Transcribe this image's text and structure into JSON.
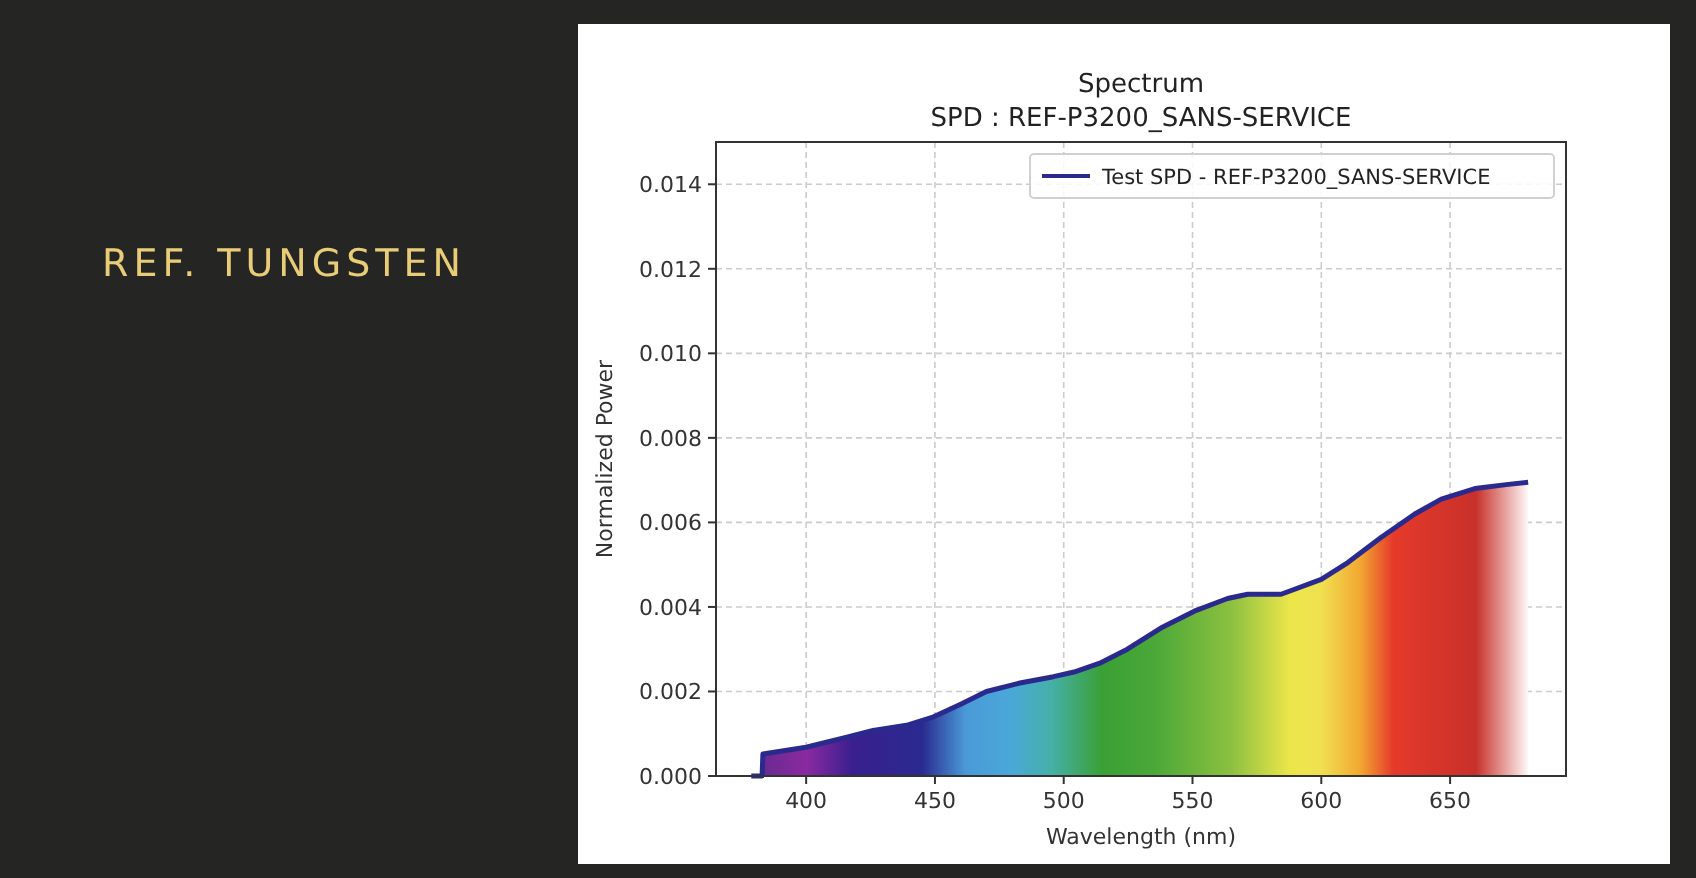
{
  "chart_data": {
    "type": "area",
    "title": "Spectrum",
    "subtitle": "SPD : REF-P3200_SANS-SERVICE",
    "xlabel": "Wavelength (nm)",
    "ylabel": "Normalized Power",
    "annotations": [
      "REF. TUNGSTEN"
    ],
    "x": [
      378.7,
      382.9,
      383.2,
      400,
      415.8,
      426,
      439,
      449.5,
      460,
      470,
      483,
      496,
      504,
      514,
      524.7,
      537.7,
      550.7,
      563.6,
      571.4,
      584.4,
      600,
      610.3,
      623.3,
      636.3,
      646.6,
      659.6,
      672.6,
      680.3
    ],
    "series": [
      {
        "name": "Test SPD - REF-P3200_SANS-SERVICE",
        "color": "#2a2a8e",
        "values": [
          0,
          0,
          0.00052,
          0.00068,
          0.00092,
          0.00108,
          0.0012,
          0.0014,
          0.0017,
          0.002,
          0.0022,
          0.00235,
          0.00246,
          0.00267,
          0.003,
          0.0035,
          0.0039,
          0.0042,
          0.0043,
          0.0043,
          0.00465,
          0.00505,
          0.00565,
          0.0062,
          0.00655,
          0.0068,
          0.0069,
          0.00695
        ]
      }
    ],
    "xlim": [
      365,
      695
    ],
    "ylim": [
      0,
      0.015
    ],
    "xticks": [
      400,
      450,
      500,
      550,
      600,
      650
    ],
    "yticks": [
      {
        "value": 0,
        "label": "0.000"
      },
      {
        "value": 0.002,
        "label": "0.002"
      },
      {
        "value": 0.004,
        "label": "0.004"
      },
      {
        "value": 0.006,
        "label": "0.006"
      },
      {
        "value": 0.008,
        "label": "0.008"
      },
      {
        "value": 0.01,
        "label": "0.010"
      },
      {
        "value": 0.012,
        "label": "0.012"
      },
      {
        "value": 0.014,
        "label": "0.014"
      }
    ],
    "grid": true,
    "legend": "top right"
  }
}
